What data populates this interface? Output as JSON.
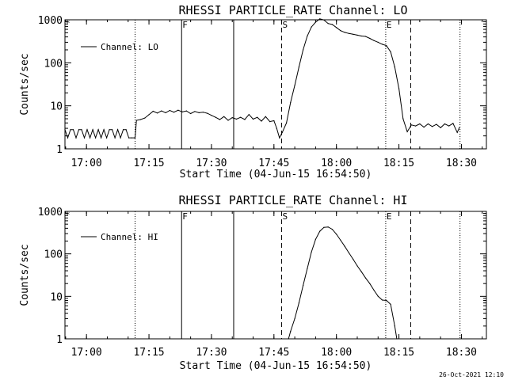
{
  "footer_timestamp": "26-Oct-2021 12:10",
  "chart_data": [
    {
      "type": "line",
      "title": "RHESSI PARTICLE_RATE Channel: LO",
      "xlabel": "Start Time (04-Jun-15 16:54:50)",
      "ylabel": "Counts/sec",
      "yscale": "log",
      "ylim": [
        1,
        1000
      ],
      "xlim": [
        "16:54:50",
        "18:36:00"
      ],
      "xticks": [
        "17:00",
        "17:15",
        "17:30",
        "17:45",
        "18:00",
        "18:15",
        "18:30"
      ],
      "yticks": [
        "1",
        "10",
        "100",
        "1000"
      ],
      "legend": "top-left",
      "series": [
        {
          "name": "Channel: LO",
          "x": [
            "16:54:50",
            "16:55:30",
            "16:56:10",
            "16:56:50",
            "16:57:30",
            "16:58:10",
            "16:58:50",
            "16:59:30",
            "17:00:10",
            "17:00:50",
            "17:01:30",
            "17:02:10",
            "17:02:50",
            "17:03:30",
            "17:04:10",
            "17:04:50",
            "17:05:30",
            "17:06:10",
            "17:06:50",
            "17:07:30",
            "17:08:10",
            "17:08:50",
            "17:09:30",
            "17:10:10",
            "17:10:50",
            "17:11:30",
            "17:11:40",
            "17:12:00",
            "17:13:00",
            "17:14:00",
            "17:15:00",
            "17:16:00",
            "17:17:00",
            "17:18:00",
            "17:19:00",
            "17:20:00",
            "17:21:00",
            "17:22:00",
            "17:23:00",
            "17:24:00",
            "17:25:00",
            "17:26:00",
            "17:27:00",
            "17:28:00",
            "17:29:00",
            "17:30:00",
            "17:31:00",
            "17:32:00",
            "17:33:00",
            "17:34:00",
            "17:35:00",
            "17:36:00",
            "17:37:00",
            "17:38:00",
            "17:39:00",
            "17:40:00",
            "17:41:00",
            "17:42:00",
            "17:43:00",
            "17:44:00",
            "17:45:00",
            "17:45:40",
            "17:46:20",
            "17:47:00",
            "17:48:00",
            "17:49:00",
            "17:50:00",
            "17:51:00",
            "17:52:00",
            "17:53:00",
            "17:54:00",
            "17:55:00",
            "17:56:00",
            "17:57:00",
            "17:58:00",
            "17:59:00",
            "18:00:00",
            "18:01:00",
            "18:02:00",
            "18:03:00",
            "18:04:00",
            "18:05:00",
            "18:06:00",
            "18:07:00",
            "18:08:00",
            "18:09:00",
            "18:10:00",
            "18:11:00",
            "18:12:00",
            "18:13:00",
            "18:14:00",
            "18:15:00",
            "18:16:00",
            "18:17:00",
            "18:18:00",
            "18:19:00",
            "18:20:00",
            "18:21:00",
            "18:22:00",
            "18:23:00",
            "18:24:00",
            "18:25:00",
            "18:26:00",
            "18:27:00",
            "18:28:00",
            "18:29:00",
            "18:29:30"
          ],
          "y": [
            2.8,
            1.8,
            2.8,
            2.8,
            1.8,
            2.8,
            2.8,
            1.8,
            2.8,
            1.8,
            2.8,
            1.8,
            2.8,
            1.8,
            2.8,
            1.8,
            2.8,
            2.8,
            1.8,
            2.8,
            1.8,
            2.8,
            2.8,
            1.8,
            1.8,
            1.8,
            1.8,
            4.6,
            4.8,
            5.2,
            6.2,
            7.5,
            6.8,
            7.6,
            6.9,
            7.8,
            7.1,
            7.9,
            7.2,
            7.6,
            6.6,
            7.4,
            6.9,
            7.1,
            6.7,
            6.0,
            5.4,
            4.8,
            5.6,
            4.6,
            5.3,
            4.9,
            5.4,
            4.8,
            6.3,
            4.9,
            5.4,
            4.4,
            5.6,
            4.3,
            4.5,
            3.0,
            1.8,
            2.4,
            4.0,
            12,
            30,
            80,
            200,
            420,
            680,
            880,
            1050,
            990,
            820,
            780,
            660,
            560,
            510,
            480,
            460,
            440,
            420,
            410,
            370,
            330,
            300,
            270,
            250,
            180,
            80,
            25,
            5,
            2.5,
            3.6,
            3.4,
            3.8,
            3.2,
            3.8,
            3.3,
            3.7,
            3.1,
            3.8,
            3.4,
            3.9,
            2.4,
            3.1
          ]
        }
      ],
      "markers": [
        {
          "time": "17:11:40",
          "style": "dotted",
          "label": ""
        },
        {
          "time": "17:22:50",
          "style": "solid",
          "label": "F"
        },
        {
          "time": "17:35:20",
          "style": "solid",
          "label": ""
        },
        {
          "time": "17:46:50",
          "style": "dashed",
          "label": "S"
        },
        {
          "time": "18:11:50",
          "style": "dotted",
          "label": "E"
        },
        {
          "time": "18:17:50",
          "style": "dashed",
          "label": ""
        },
        {
          "time": "18:29:40",
          "style": "dotted",
          "label": ""
        }
      ]
    },
    {
      "type": "line",
      "title": "RHESSI PARTICLE_RATE Channel: HI",
      "xlabel": "Start Time (04-Jun-15 16:54:50)",
      "ylabel": "Counts/sec",
      "yscale": "log",
      "ylim": [
        1,
        1000
      ],
      "xlim": [
        "16:54:50",
        "18:36:00"
      ],
      "xticks": [
        "17:00",
        "17:15",
        "17:30",
        "17:45",
        "18:00",
        "18:15",
        "18:30"
      ],
      "yticks": [
        "1",
        "10",
        "100",
        "1000"
      ],
      "legend": "top-left",
      "series": [
        {
          "name": "Channel: HI",
          "x": [
            "17:48:30",
            "17:49:00",
            "17:50:00",
            "17:51:00",
            "17:52:00",
            "17:53:00",
            "17:54:00",
            "17:55:00",
            "17:56:00",
            "17:57:00",
            "17:58:00",
            "17:59:00",
            "18:00:00",
            "18:01:00",
            "18:02:00",
            "18:03:00",
            "18:04:00",
            "18:05:00",
            "18:06:00",
            "18:07:00",
            "18:08:00",
            "18:09:00",
            "18:10:00",
            "18:11:00",
            "18:12:00",
            "18:13:00",
            "18:14:00",
            "18:14:30"
          ],
          "y": [
            1,
            1.5,
            3,
            7,
            18,
            45,
            110,
            220,
            340,
            420,
            430,
            380,
            290,
            210,
            150,
            105,
            75,
            52,
            38,
            27,
            20,
            14,
            10,
            8.2,
            8,
            6.5,
            2,
            1
          ]
        }
      ],
      "markers": [
        {
          "time": "17:11:40",
          "style": "dotted",
          "label": ""
        },
        {
          "time": "17:22:50",
          "style": "solid",
          "label": "F"
        },
        {
          "time": "17:35:20",
          "style": "solid",
          "label": ""
        },
        {
          "time": "17:46:50",
          "style": "dashed",
          "label": "S"
        },
        {
          "time": "18:11:50",
          "style": "dotted",
          "label": "E"
        },
        {
          "time": "18:17:50",
          "style": "dashed",
          "label": ""
        },
        {
          "time": "18:29:40",
          "style": "dotted",
          "label": ""
        }
      ]
    }
  ]
}
